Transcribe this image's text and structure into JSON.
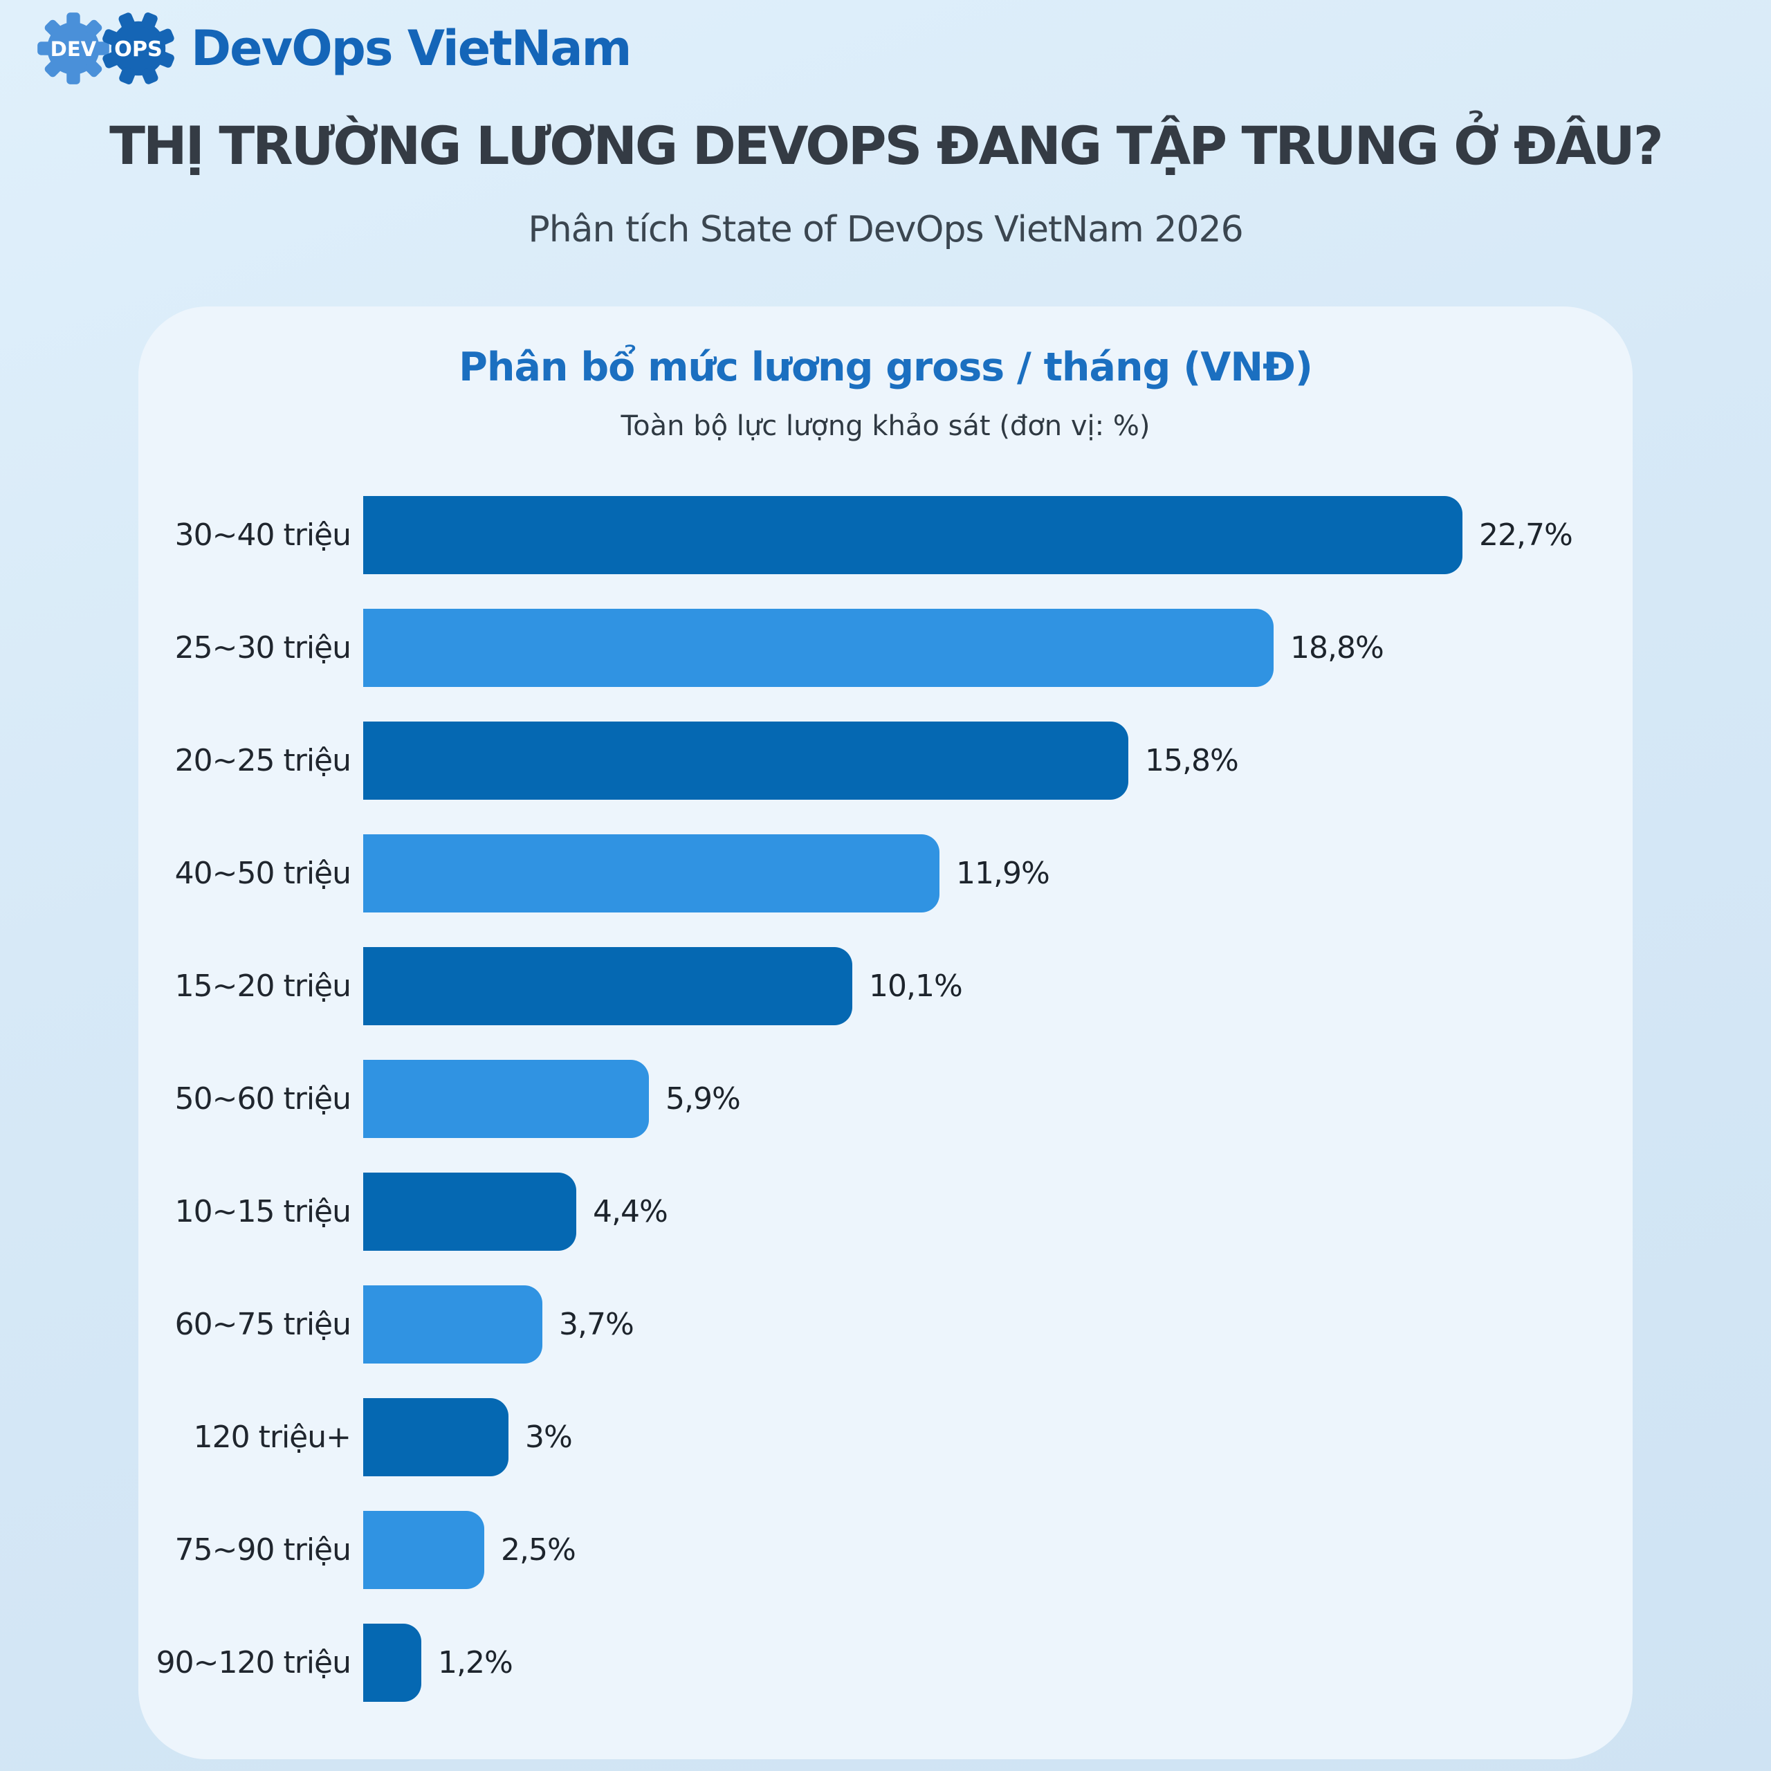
{
  "logo": {
    "gear1_label": "DEV",
    "gear2_label": "OPS",
    "wordmark": "DevOps VietNam",
    "gear1_color": "#4a90d9",
    "gear2_color": "#1565b5",
    "wordmark_color": "#1465b8"
  },
  "header": {
    "title": "THỊ TRƯỜNG LƯƠNG DEVOPS ĐANG TẬP TRUNG Ở ĐÂU?",
    "subtitle": "Phân tích State of DevOps VietNam 2026"
  },
  "chart_data": {
    "type": "bar",
    "orientation": "horizontal",
    "title": "Phân bổ mức lương gross / tháng (VNĐ)",
    "subtitle": "Toàn bộ lực lượng khảo sát (đơn vị: %)",
    "categories": [
      "30~40 triệu",
      "25~30 triệu",
      "20~25 triệu",
      "40~50 triệu",
      "15~20 triệu",
      "50~60 triệu",
      "10~15 triệu",
      "60~75 triệu",
      "120 triệu+",
      "75~90 triệu",
      "90~120 triệu"
    ],
    "values": [
      22.7,
      18.8,
      15.8,
      11.9,
      10.1,
      5.9,
      4.4,
      3.7,
      3,
      2.5,
      1.2
    ],
    "value_labels": [
      "22,7%",
      "18,8%",
      "15,8%",
      "11,9%",
      "10,1%",
      "5,9%",
      "4,4%",
      "3,7%",
      "3%",
      "2,5%",
      "1,2%"
    ],
    "xlim": [
      0,
      24
    ],
    "grid": false,
    "legend": false,
    "sort": "descending by value",
    "bar_colors": {
      "dark": "#0568b2",
      "light": "#3093e2"
    },
    "color_pattern": "alternating: rows 1,3,5,7,9,11 dark blue; rows 2,4,6,8,10 light blue"
  },
  "colors": {
    "page_bg_top": "#e0f0fb",
    "page_bg_bottom": "#cfe3f3",
    "card_bg": "#edf5fc",
    "headline_text": "#343b44",
    "subtitle_text": "#3b4650",
    "chart_title_text": "#1b6fc0",
    "label_text": "#20262e"
  }
}
